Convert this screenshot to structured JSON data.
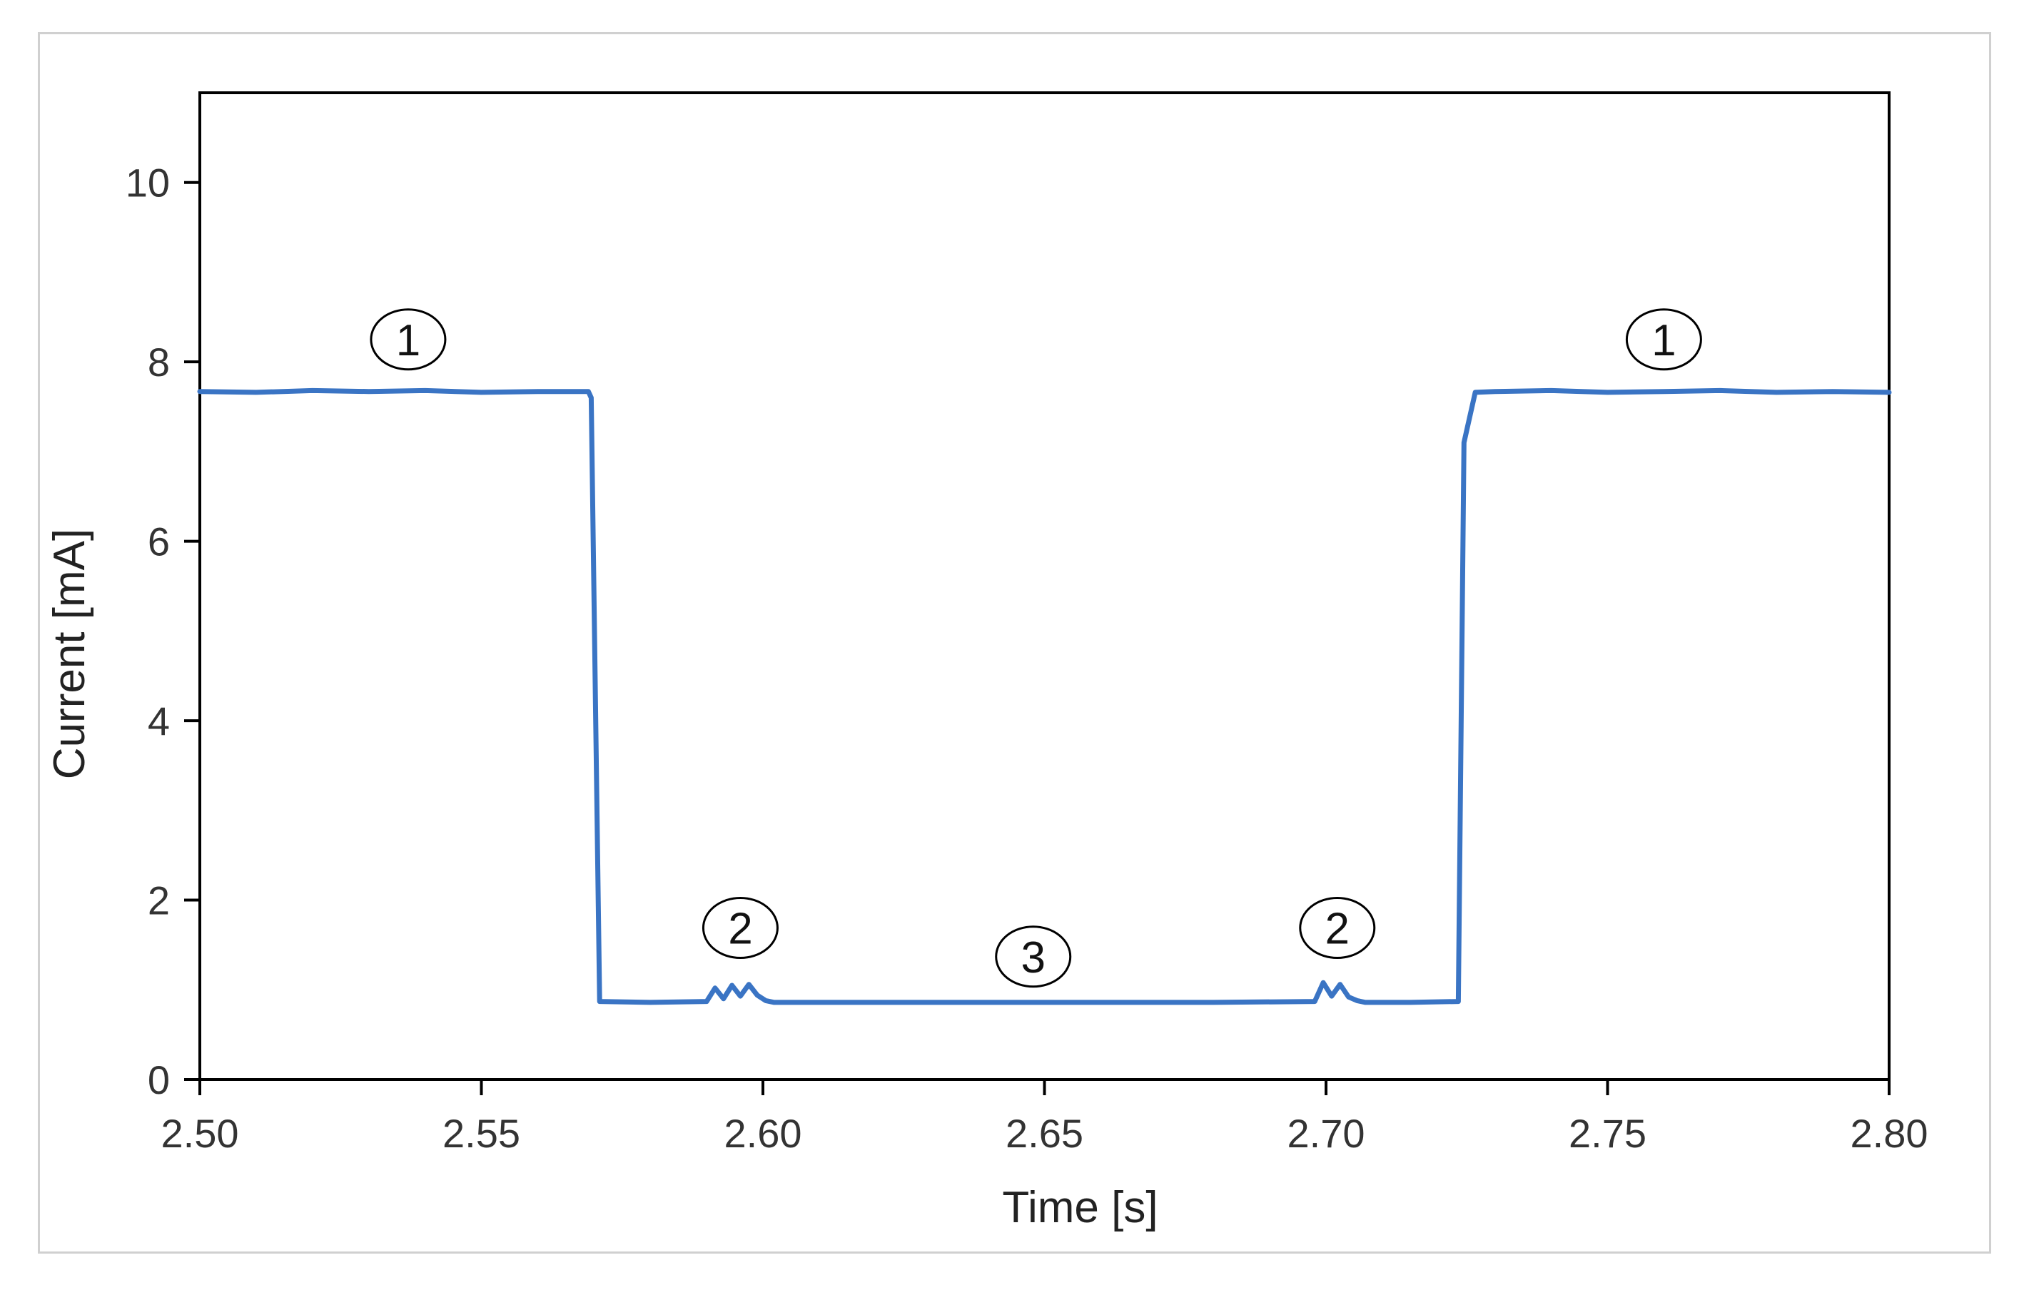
{
  "chart_data": {
    "type": "line",
    "title": "",
    "xlabel": "Time [s]",
    "ylabel": "Current [mA]",
    "xlim": [
      2.5,
      2.8
    ],
    "ylim": [
      0,
      11
    ],
    "xticks": [
      2.5,
      2.55,
      2.6,
      2.65,
      2.7,
      2.75,
      2.8
    ],
    "xtick_labels": [
      "2.50",
      "2.55",
      "2.60",
      "2.65",
      "2.70",
      "2.75",
      "2.80"
    ],
    "yticks": [
      0,
      2,
      4,
      6,
      8,
      10
    ],
    "ytick_labels": [
      "0",
      "2",
      "4",
      "6",
      "8",
      "10"
    ],
    "grid": false,
    "legend": "none",
    "line_color": "#3a74c4",
    "series": [
      {
        "x": [
          2.5,
          2.51,
          2.52,
          2.53,
          2.54,
          2.55,
          2.56,
          2.569,
          2.5695,
          2.571,
          2.58,
          2.59,
          2.5915,
          2.593,
          2.5945,
          2.596,
          2.5975,
          2.599,
          2.6005,
          2.602,
          2.62,
          2.64,
          2.66,
          2.68,
          2.698,
          2.6995,
          2.701,
          2.7025,
          2.704,
          2.7055,
          2.707,
          2.715,
          2.7235,
          2.7245,
          2.7265,
          2.73,
          2.74,
          2.75,
          2.76,
          2.77,
          2.78,
          2.79,
          2.8
        ],
        "y": [
          7.67,
          7.66,
          7.68,
          7.67,
          7.68,
          7.66,
          7.67,
          7.67,
          7.6,
          0.87,
          0.86,
          0.87,
          1.02,
          0.9,
          1.05,
          0.93,
          1.06,
          0.94,
          0.88,
          0.86,
          0.86,
          0.86,
          0.86,
          0.86,
          0.87,
          1.08,
          0.93,
          1.06,
          0.92,
          0.88,
          0.86,
          0.86,
          0.87,
          7.1,
          7.66,
          7.67,
          7.68,
          7.66,
          7.67,
          7.68,
          7.66,
          7.67,
          7.66
        ]
      }
    ],
    "annotations": [
      {
        "label": "1",
        "x": 2.537,
        "y": 8.25
      },
      {
        "label": "2",
        "x": 2.596,
        "y": 1.69
      },
      {
        "label": "3",
        "x": 2.648,
        "y": 1.37
      },
      {
        "label": "2",
        "x": 2.702,
        "y": 1.69
      },
      {
        "label": "1",
        "x": 2.76,
        "y": 8.25
      }
    ]
  }
}
